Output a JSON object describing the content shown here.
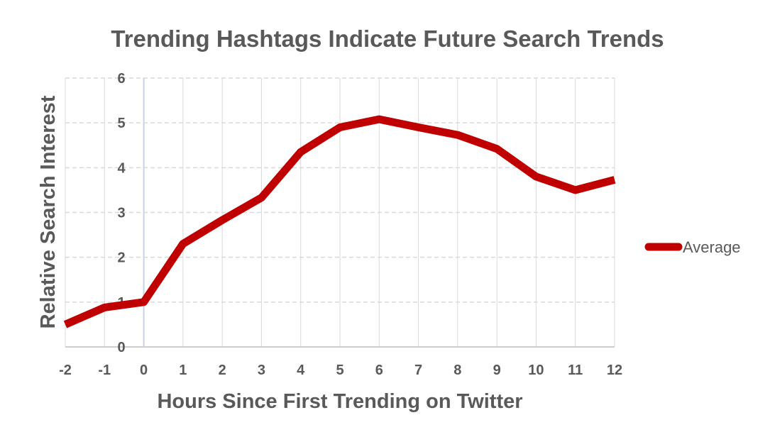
{
  "chart_data": {
    "type": "line",
    "title": "Trending Hashtags Indicate Future Search Trends",
    "xlabel": "Hours Since First Trending on Twitter",
    "ylabel": "Relative Search Interest",
    "x": [
      -2,
      -1,
      0,
      1,
      2,
      3,
      4,
      5,
      6,
      7,
      8,
      9,
      10,
      11,
      12
    ],
    "xlim": [
      -2,
      12
    ],
    "ylim": [
      0,
      6
    ],
    "yticks": [
      0,
      1,
      2,
      3,
      4,
      5,
      6
    ],
    "grid": true,
    "legend_position": "right",
    "series": [
      {
        "name": "Average",
        "color": "#c00000",
        "values": [
          0.5,
          0.88,
          1.0,
          2.3,
          2.83,
          3.33,
          4.35,
          4.9,
          5.08,
          4.9,
          4.73,
          4.42,
          3.8,
          3.5,
          3.73
        ]
      }
    ]
  }
}
